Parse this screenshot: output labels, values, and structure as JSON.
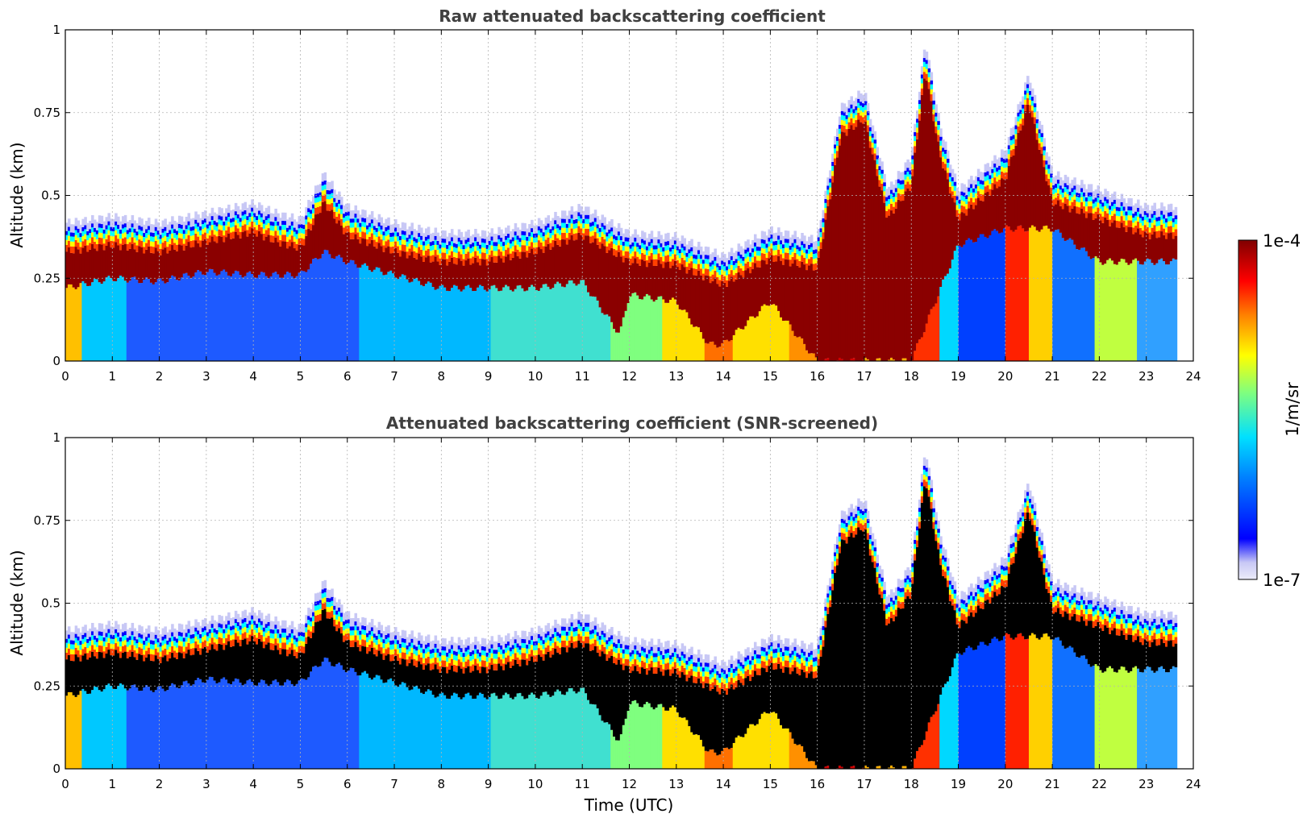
{
  "chart_data": [
    {
      "type": "heatmap",
      "title": "Raw attenuated backscattering coefficient",
      "xlabel": "",
      "ylabel": "Altitude (km)",
      "xlim": [
        0,
        24
      ],
      "ylim": [
        0,
        1
      ],
      "x_ticks": [
        "0",
        "1",
        "2",
        "3",
        "4",
        "5",
        "6",
        "7",
        "8",
        "9",
        "10",
        "11",
        "12",
        "13",
        "14",
        "15",
        "16",
        "17",
        "18",
        "19",
        "20",
        "21",
        "22",
        "23",
        "24"
      ],
      "y_ticks": [
        "0",
        "0.25",
        "0.5",
        "0.75",
        "1"
      ],
      "grid": true,
      "colormap": "jet",
      "data_end_time": 23.65,
      "layer_top_km": [
        [
          0,
          0.4
        ],
        [
          1,
          0.42
        ],
        [
          2,
          0.4
        ],
        [
          3,
          0.43
        ],
        [
          4,
          0.46
        ],
        [
          4.5,
          0.43
        ],
        [
          5,
          0.41
        ],
        [
          5.5,
          0.55
        ],
        [
          6,
          0.45
        ],
        [
          7,
          0.4
        ],
        [
          8,
          0.37
        ],
        [
          9,
          0.37
        ],
        [
          10,
          0.4
        ],
        [
          11,
          0.45
        ],
        [
          12,
          0.37
        ],
        [
          13,
          0.36
        ],
        [
          14,
          0.3
        ],
        [
          15,
          0.38
        ],
        [
          16,
          0.35
        ],
        [
          16.5,
          0.75
        ],
        [
          17,
          0.8
        ],
        [
          17.5,
          0.5
        ],
        [
          18,
          0.6
        ],
        [
          18.3,
          0.95
        ],
        [
          18.6,
          0.7
        ],
        [
          19,
          0.5
        ],
        [
          20,
          0.62
        ],
        [
          20.5,
          0.85
        ],
        [
          21,
          0.55
        ],
        [
          22,
          0.5
        ],
        [
          23,
          0.45
        ],
        [
          23.65,
          0.45
        ]
      ],
      "layer_base_km": [
        [
          0,
          0.22
        ],
        [
          1,
          0.25
        ],
        [
          2,
          0.24
        ],
        [
          3,
          0.27
        ],
        [
          4,
          0.26
        ],
        [
          5,
          0.26
        ],
        [
          5.5,
          0.33
        ],
        [
          6,
          0.3
        ],
        [
          7,
          0.26
        ],
        [
          8,
          0.22
        ],
        [
          9,
          0.22
        ],
        [
          10,
          0.22
        ],
        [
          11,
          0.24
        ],
        [
          11.8,
          0.08
        ],
        [
          12,
          0.2
        ],
        [
          13,
          0.18
        ],
        [
          13.7,
          0.05
        ],
        [
          14,
          0.05
        ],
        [
          15,
          0.18
        ],
        [
          16,
          0.0
        ],
        [
          17,
          0.0
        ],
        [
          18,
          0.0
        ],
        [
          19,
          0.35
        ],
        [
          20,
          0.4
        ],
        [
          21,
          0.4
        ],
        [
          22,
          0.3
        ],
        [
          23,
          0.3
        ],
        [
          23.65,
          0.3
        ]
      ]
    },
    {
      "type": "heatmap",
      "title": "Attenuated backscattering coefficient (SNR-screened)",
      "xlabel": "Time (UTC)",
      "ylabel": "Altitude (km)",
      "xlim": [
        0,
        24
      ],
      "ylim": [
        0,
        1
      ],
      "x_ticks": [
        "0",
        "1",
        "2",
        "3",
        "4",
        "5",
        "6",
        "7",
        "8",
        "9",
        "10",
        "11",
        "12",
        "13",
        "14",
        "15",
        "16",
        "17",
        "18",
        "19",
        "20",
        "21",
        "22",
        "23",
        "24"
      ],
      "y_ticks": [
        "0",
        "0.25",
        "0.5",
        "0.75",
        "1"
      ],
      "grid": true,
      "colormap": "jet",
      "screened_color": "#000000",
      "data_end_time": 23.65
    }
  ],
  "colorbar": {
    "label": "1/m/sr",
    "max_label": "1e-4",
    "min_label": "1e-7",
    "scale": "log",
    "range": [
      1e-07,
      0.0001
    ],
    "colors": [
      "#ececfa",
      "#c8c8f5",
      "#0000ff",
      "#0080ff",
      "#00e0ff",
      "#7fff7f",
      "#ffff00",
      "#ff8000",
      "#ff0000",
      "#800000"
    ]
  }
}
